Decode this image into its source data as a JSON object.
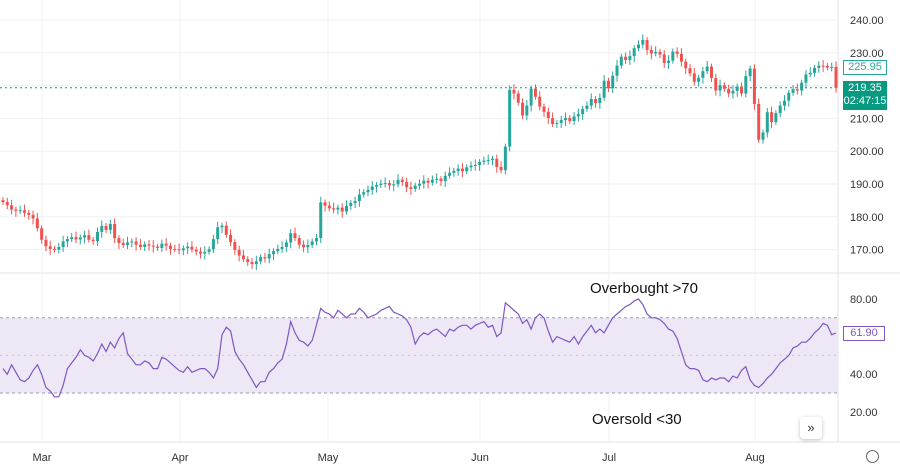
{
  "colors": {
    "up": "#26a69a",
    "down": "#ef5350",
    "rsi_line": "#7e57c2",
    "rsi_band": "#ede7f6",
    "last_price_bg": "#089981",
    "grid": "#f0f0f0"
  },
  "icons": {
    "scroll": "double-chevron-right-icon",
    "settings": "settings-icon"
  },
  "annotations": {
    "overbought": "Overbought >70",
    "oversold": "Oversold <30"
  },
  "scroll_button": "»",
  "chart_data": [
    {
      "type": "candlestick",
      "title": "",
      "x_ticks": [
        "Mar",
        "Apr",
        "May",
        "Jun",
        "Jul",
        "Aug"
      ],
      "y_ticks": [
        "240.00",
        "230.00",
        "220.00",
        "210.00",
        "200.00",
        "190.00",
        "180.00",
        "170.00"
      ],
      "ylim": [
        164,
        243
      ],
      "price_labels": {
        "prev": "225.95",
        "last": "219.35",
        "countdown": "02:47:15"
      },
      "closes": [
        184.5,
        183.5,
        182.2,
        181.8,
        182.0,
        181.2,
        180.6,
        179.5,
        176.5,
        173.0,
        171.0,
        170.2,
        170.0,
        170.8,
        172.5,
        173.2,
        173.8,
        173.1,
        173.7,
        174.4,
        173.0,
        172.6,
        175.4,
        177.2,
        176.0,
        177.8,
        173.5,
        172.0,
        171.4,
        172.2,
        172.5,
        171.5,
        170.8,
        171.6,
        171.2,
        170.9,
        170.5,
        171.8,
        171.2,
        170.2,
        170.1,
        169.8,
        170.4,
        170.9,
        170.0,
        169.4,
        168.8,
        169.3,
        170.1,
        173.2,
        176.8,
        177.3,
        174.5,
        172.3,
        169.9,
        168.2,
        167.1,
        166.2,
        165.6,
        166.4,
        167.7,
        167.3,
        168.6,
        169.5,
        170.2,
        170.8,
        172.2,
        175.0,
        173.5,
        171.5,
        170.7,
        171.4,
        172.5,
        173.5,
        184.4,
        183.4,
        182.6,
        182.2,
        182.8,
        181.6,
        183.3,
        184.2,
        184.8,
        186.8,
        187.5,
        188.2,
        189.2,
        189.7,
        190.1,
        190.3,
        189.6,
        189.9,
        191.3,
        190.6,
        189.0,
        188.5,
        189.5,
        190.1,
        191.0,
        190.4,
        191.3,
        191.6,
        190.9,
        192.5,
        193.4,
        194.0,
        194.7,
        193.9,
        195.1,
        195.6,
        195.8,
        196.7,
        197.1,
        197.3,
        197.7,
        195.2,
        194.2,
        201.4,
        218.7,
        217.6,
        214.8,
        210.9,
        213.9,
        219.1,
        216.6,
        213.6,
        212.0,
        210.1,
        208.3,
        208.6,
        209.5,
        210.1,
        209.2,
        210.6,
        211.3,
        212.9,
        213.9,
        215.9,
        214.7,
        216.3,
        221.5,
        219.2,
        223.0,
        226.1,
        228.8,
        227.8,
        229.0,
        231.4,
        232.5,
        233.9,
        230.9,
        229.8,
        230.3,
        229.5,
        226.9,
        227.6,
        230.4,
        229.7,
        227.3,
        225.3,
        223.7,
        221.2,
        222.4,
        224.4,
        225.8,
        222.3,
        218.5,
        220.1,
        219.0,
        217.6,
        218.4,
        219.7,
        217.6,
        222.9,
        225.2,
        214.4,
        203.5,
        205.7,
        211.9,
        208.9,
        211.6,
        213.9,
        215.4,
        217.8,
        218.9,
        218.5,
        220.9,
        223.4,
        223.9,
        225.4,
        226.1,
        226.0,
        225.5,
        225.7,
        219.35
      ]
    },
    {
      "type": "line",
      "title": "",
      "y_ticks": [
        "80.00",
        "60.00",
        "40.00",
        "20.00"
      ],
      "ylim": [
        14,
        87
      ],
      "band": [
        30,
        70
      ],
      "last_value_label": "61.90",
      "values": [
        43,
        40,
        45,
        41,
        37,
        36,
        38,
        42,
        45,
        40,
        33,
        31,
        28,
        28,
        34,
        43,
        46,
        49,
        53,
        50,
        49,
        47,
        51,
        56,
        52,
        57,
        54,
        59,
        62,
        51,
        48,
        45,
        45,
        47,
        46,
        43,
        43,
        49,
        48,
        46,
        44,
        42,
        41,
        44,
        41,
        42,
        43,
        43,
        41,
        38,
        43,
        61,
        65,
        63,
        52,
        48,
        45,
        41,
        37,
        33,
        36,
        36,
        41,
        43,
        46,
        48,
        56,
        68,
        62,
        58,
        57,
        55,
        58,
        66,
        75,
        73,
        72,
        70,
        74,
        72,
        70,
        72,
        72,
        75,
        73,
        70,
        71,
        72,
        74,
        75,
        76,
        73,
        72,
        71,
        69,
        65,
        56,
        60,
        62,
        61,
        63,
        64,
        62,
        60,
        64,
        63,
        65,
        66,
        66,
        64,
        66,
        67,
        68,
        65,
        66,
        60,
        62,
        78,
        76,
        74,
        72,
        67,
        69,
        64,
        70,
        72,
        70,
        63,
        57,
        60,
        59,
        58,
        57,
        60,
        56,
        60,
        63,
        66,
        62,
        64,
        62,
        66,
        70,
        72,
        74,
        76,
        77,
        79,
        80,
        77,
        72,
        70,
        70,
        69,
        67,
        64,
        63,
        59,
        52,
        45,
        43,
        43,
        42,
        37,
        36,
        38,
        37,
        38,
        38,
        36,
        39,
        38,
        42,
        44,
        37,
        34,
        33,
        35,
        38,
        40,
        43,
        46,
        48,
        50,
        54,
        55,
        57,
        57,
        59,
        62,
        64,
        67,
        66,
        61,
        61.9
      ]
    }
  ]
}
